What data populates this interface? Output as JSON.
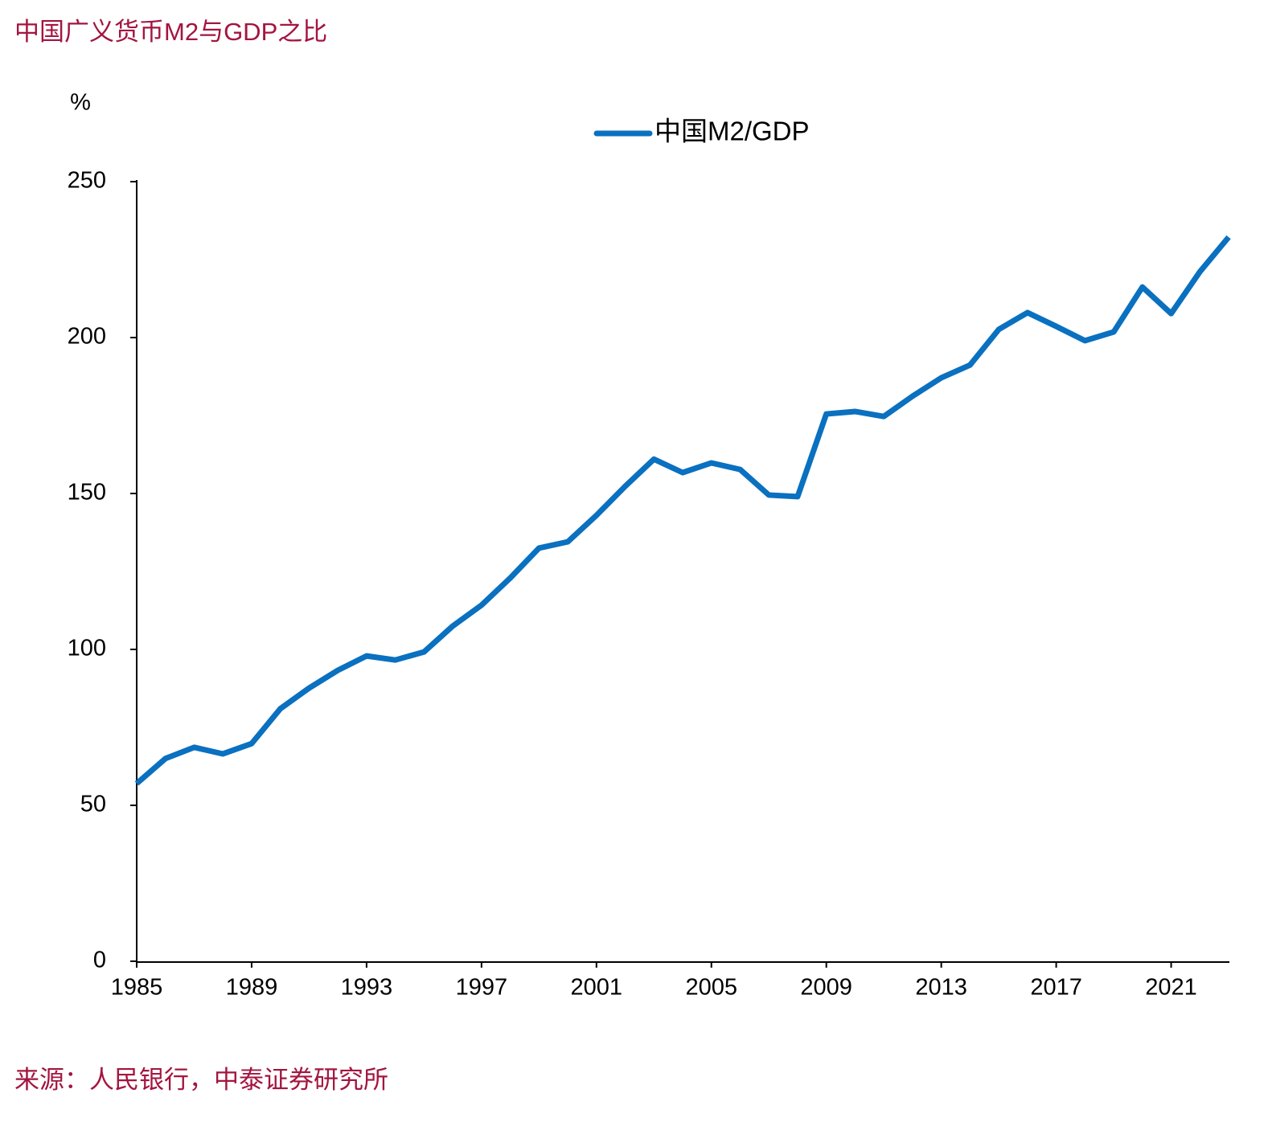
{
  "chart_data": {
    "type": "line",
    "title": "中国广义货币M2与GDP之比",
    "y_label": "%",
    "source": "来源：人民银行，中泰证券研究所",
    "x": [
      1985,
      1986,
      1987,
      1988,
      1989,
      1990,
      1991,
      1992,
      1993,
      1994,
      1995,
      1996,
      1997,
      1998,
      1999,
      2000,
      2001,
      2002,
      2003,
      2004,
      2005,
      2006,
      2007,
      2008,
      2009,
      2010,
      2011,
      2012,
      2013,
      2014,
      2015,
      2016,
      2017,
      2018,
      2019,
      2020,
      2021,
      2022,
      2023
    ],
    "series": [
      {
        "name": "中国M2/GDP",
        "color": "#0a70c0",
        "values": [
          57,
          65,
          68.6,
          66.5,
          69.8,
          81,
          87.6,
          93.3,
          97.9,
          96.6,
          99.2,
          107.5,
          114.2,
          122.9,
          132.5,
          134.5,
          143,
          152.3,
          161,
          156.7,
          159.8,
          157.7,
          149.5,
          149,
          175.5,
          176.3,
          174.7,
          181.2,
          187.1,
          191.2,
          202.6,
          208,
          203.6,
          199,
          201.8,
          216.2,
          207.7,
          221.1,
          232.2
        ]
      }
    ],
    "xlim": [
      1985,
      2023
    ],
    "xticks": [
      1985,
      1989,
      1993,
      1997,
      2001,
      2005,
      2009,
      2013,
      2017,
      2021
    ],
    "ylim": [
      0,
      250
    ],
    "yticks": [
      0,
      50,
      100,
      150,
      200,
      250
    ],
    "grid": false,
    "legend": "top"
  }
}
